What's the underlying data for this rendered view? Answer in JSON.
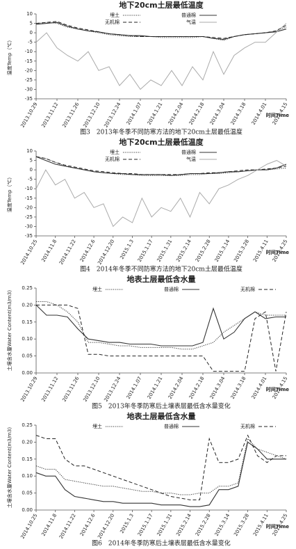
{
  "chart_data": [
    {
      "type": "line",
      "title": "地下20cm土层最低温度",
      "x_label": "时间Time",
      "y_label": "温度Temp（℃）",
      "caption": "图3　2013年冬季不同防寒方法的地下20cm土层最低温度",
      "categories": [
        "2013.10.29",
        null,
        "2013.11.12",
        null,
        "2013.11.26",
        null,
        "2013.12.10",
        null,
        "2013.12.24",
        null,
        "2014.1.07",
        null,
        "2014.1.21",
        null,
        "2014.2.04",
        null,
        "2014.2.18",
        null,
        "2014.3.04",
        null,
        "2014.3.18",
        null,
        "2014.4.01",
        null,
        "2014.4.15"
      ],
      "ylim": [
        -35,
        10
      ],
      "yticks": [
        -35,
        -30,
        -25,
        -20,
        -15,
        -10,
        -5,
        0,
        5,
        10
      ],
      "grid": false,
      "series": [
        {
          "name": "埋土",
          "color": "#333333",
          "style": "dotted",
          "values": [
            5,
            5.5,
            5,
            3,
            2,
            1,
            0,
            -1,
            -1.5,
            -2,
            -2,
            -2,
            -2.5,
            -2.5,
            -2.5,
            -2.5,
            -2,
            -3,
            -4,
            -2,
            -1,
            -0.5,
            0,
            1,
            3
          ]
        },
        {
          "name": "普通棉",
          "color": "#333333",
          "style": "solid",
          "values": [
            4.5,
            5,
            5.5,
            3.5,
            2,
            1,
            0.5,
            -0.5,
            -1,
            -1.5,
            -1.5,
            -2,
            -2,
            -2,
            -2,
            -2,
            -2,
            -3,
            -3.5,
            -2,
            -1,
            -0.5,
            0,
            0.5,
            2
          ]
        },
        {
          "name": "无机棉",
          "color": "#222222",
          "style": "dashed",
          "values": [
            5,
            5.5,
            6,
            4,
            2.5,
            1.5,
            0.5,
            -0.5,
            -1,
            -1.5,
            -2,
            -2,
            -2,
            -2,
            -2,
            -2,
            -2,
            -2.5,
            -3,
            -2,
            -1,
            -0.5,
            0,
            1,
            4
          ]
        },
        {
          "name": "气温",
          "color": "#aaaaaa",
          "style": "solid",
          "values": [
            -5,
            0,
            -8,
            -12,
            -15,
            -10,
            -20,
            -18,
            -28,
            -22,
            -30,
            -25,
            -28,
            -20,
            -28,
            -18,
            -25,
            -10,
            -22,
            -12,
            -8,
            -5,
            -5,
            0,
            5
          ]
        }
      ]
    },
    {
      "type": "line",
      "title": "地下20cm土层最低温度",
      "x_label": "时间Time",
      "y_label": "温度Temp（℃）",
      "caption": "图4　2014年冬季不同防寒方法的地下20cm土层最低温度",
      "categories": [
        "2014.10.25",
        null,
        "2014.11.8",
        null,
        "2014.11.22",
        null,
        "2014.12.6",
        null,
        "2014.12.20",
        null,
        "2015.1.3",
        null,
        "2015.1.17",
        null,
        "2015.1.31",
        null,
        "2015.2.14",
        null,
        "2015.2.28",
        null,
        "2015.3.14",
        null,
        "2015.3.28",
        null,
        "2015.4.11",
        null,
        "2015.4.25"
      ],
      "ylim": [
        -35,
        10
      ],
      "yticks": [
        -35,
        -30,
        -25,
        -20,
        -15,
        -10,
        -5,
        0,
        5,
        10
      ],
      "grid": false,
      "series": [
        {
          "name": "埋土",
          "color": "#333333",
          "style": "dotted",
          "values": [
            7,
            6,
            4,
            2,
            1,
            0,
            -1,
            -1.5,
            -2,
            -2.5,
            -2.5,
            -3,
            -3,
            -3,
            -3,
            -3,
            -2.5,
            -2.5,
            -2,
            -2,
            -1.5,
            -1,
            -0.5,
            0,
            0,
            0.5,
            1
          ]
        },
        {
          "name": "普通棉",
          "color": "#333333",
          "style": "solid",
          "values": [
            7,
            5,
            3,
            2,
            1,
            0,
            -1,
            -1.5,
            -2,
            -2,
            -2.5,
            -2.5,
            -2.5,
            -2.5,
            -3,
            -2.5,
            -2,
            -2,
            -2,
            -1.5,
            -1,
            -1,
            -0.5,
            0,
            0,
            1,
            3
          ]
        },
        {
          "name": "无机棉",
          "color": "#222222",
          "style": "dashed",
          "values": [
            7,
            6,
            4,
            2.5,
            1.5,
            0.5,
            -0.5,
            -1,
            -1.5,
            -2,
            -2,
            -2.5,
            -2.5,
            -2.5,
            -2.5,
            -2.5,
            -2,
            -2,
            -1.5,
            -1.5,
            -1,
            -0.5,
            0,
            0,
            0.5,
            1,
            2
          ]
        },
        {
          "name": "气温",
          "color": "#aaaaaa",
          "style": "solid",
          "values": [
            -10,
            0,
            -8,
            -5,
            -15,
            -12,
            -20,
            -18,
            -30,
            -25,
            -28,
            -15,
            -25,
            -20,
            -22,
            -15,
            -25,
            -12,
            -18,
            -10,
            -8,
            -5,
            -3,
            0,
            3,
            5,
            2
          ]
        }
      ]
    },
    {
      "type": "line",
      "title": "地表土层最低含水量",
      "x_label": "时间Time",
      "y_label": "土壤含水量Water Content(m3/m3)",
      "caption": "图5　2013年冬季防寒后土壤表层最低含水量变化",
      "categories": [
        "2013.10.29",
        null,
        "2013.11.12",
        null,
        "2013.11.26",
        null,
        "2013.12.10",
        null,
        "2013.12.24",
        null,
        "2014.1.07",
        null,
        "2014.1.21",
        null,
        "2014.2.04",
        null,
        "2014.2.18",
        null,
        "2014.3.04",
        null,
        "2014.3.18",
        null,
        "2014.4.01",
        null,
        "2014.4.15"
      ],
      "ylim": [
        0,
        0.25
      ],
      "yticks": [
        {
          "value": 0,
          "label": "0.00"
        },
        {
          "value": 0.05,
          "label": "0.05"
        },
        {
          "value": 0.1,
          "label": "0.10"
        },
        {
          "value": 0.15,
          "label": "0.15"
        },
        {
          "value": 0.2,
          "label": "0.20"
        },
        {
          "value": 0.25,
          "label": "0.25"
        }
      ],
      "grid": false,
      "series": [
        {
          "name": "埋土",
          "color": "#333333",
          "style": "dotted",
          "values": [
            0.21,
            0.21,
            0.2,
            0.18,
            0.15,
            0.09,
            0.09,
            0.085,
            0.08,
            0.08,
            0.075,
            0.075,
            0.075,
            0.075,
            0.07,
            0.07,
            0.08,
            0.09,
            0.12,
            0.14,
            0.16,
            0.18,
            0.17,
            0.17,
            0.17
          ]
        },
        {
          "name": "普通棉",
          "color": "#333333",
          "style": "solid",
          "values": [
            0.2,
            0.17,
            0.17,
            0.165,
            0.13,
            0.1,
            0.095,
            0.09,
            0.09,
            0.085,
            0.085,
            0.085,
            0.08,
            0.08,
            0.08,
            0.08,
            0.09,
            0.19,
            0.1,
            0.12,
            0.16,
            0.18,
            0.16,
            0.165,
            0.165
          ]
        },
        {
          "name": "无机棉",
          "color": "#222222",
          "style": "dashed",
          "values": [
            0.2,
            0.2,
            0.2,
            0.2,
            0.19,
            0.055,
            0.055,
            0.05,
            0.05,
            0.05,
            0.05,
            0.05,
            0.05,
            0.05,
            0.05,
            0.05,
            0.05,
            0.005,
            0.005,
            0.005,
            0.005,
            0.16,
            0.18,
            0.005,
            0.18
          ]
        }
      ]
    },
    {
      "type": "line",
      "title": "地表土层最低含水量",
      "x_label": "时间Time",
      "y_label": "土壤含水量Water Content(m3/m3)",
      "caption": "图6　2014年冬季防寒后土壤表层最低含水量变化",
      "categories": [
        "2014.10.25",
        null,
        "2014.11.8",
        null,
        "2014.11.22",
        null,
        "2014.12.6",
        null,
        "2014.12.20",
        null,
        "2015.1.3",
        null,
        "2015.1.17",
        null,
        "2015.1.31",
        null,
        "2015.2.14",
        null,
        "2015.2.28",
        null,
        "2015.3.14",
        null,
        "2015.3.28",
        null,
        "2015.4.11",
        null,
        "2015.4.25"
      ],
      "ylim": [
        0,
        0.25
      ],
      "yticks": [
        {
          "value": 0,
          "label": "0.00"
        },
        {
          "value": 0.05,
          "label": "0.05"
        },
        {
          "value": 0.1,
          "label": "0.10"
        },
        {
          "value": 0.15,
          "label": "0.15"
        },
        {
          "value": 0.2,
          "label": "0.20"
        },
        {
          "value": 0.25,
          "label": "0.25"
        }
      ],
      "grid": false,
      "series": [
        {
          "name": "埋土",
          "color": "#333333",
          "style": "dotted",
          "values": [
            0.13,
            0.12,
            0.12,
            0.09,
            0.085,
            0.08,
            0.075,
            0.07,
            0.07,
            0.065,
            0.06,
            0.055,
            0.055,
            0.05,
            0.05,
            0.045,
            0.045,
            0.05,
            0.05,
            0.07,
            0.07,
            0.08,
            0.21,
            0.18,
            0.17,
            0.16,
            0.15
          ]
        },
        {
          "name": "普通棉",
          "color": "#333333",
          "style": "solid",
          "values": [
            0.11,
            0.1,
            0.1,
            0.06,
            0.04,
            0.035,
            0.03,
            0.025,
            0.025,
            0.02,
            0.02,
            0.02,
            0.02,
            0.015,
            0.015,
            0.015,
            0.01,
            0.01,
            0.015,
            0.06,
            0.06,
            0.07,
            0.2,
            0.18,
            0.15,
            0.15,
            0.15
          ]
        },
        {
          "name": "无机棉",
          "color": "#222222",
          "style": "dashed",
          "values": [
            0.22,
            0.21,
            0.21,
            0.15,
            0.13,
            0.13,
            0.12,
            0.11,
            0.1,
            0.09,
            0.08,
            0.07,
            0.06,
            0.05,
            0.04,
            0.035,
            0.03,
            0.03,
            0.21,
            0.14,
            0.14,
            0.15,
            0.22,
            0.16,
            0.14,
            0.16,
            0.16
          ]
        }
      ]
    }
  ]
}
